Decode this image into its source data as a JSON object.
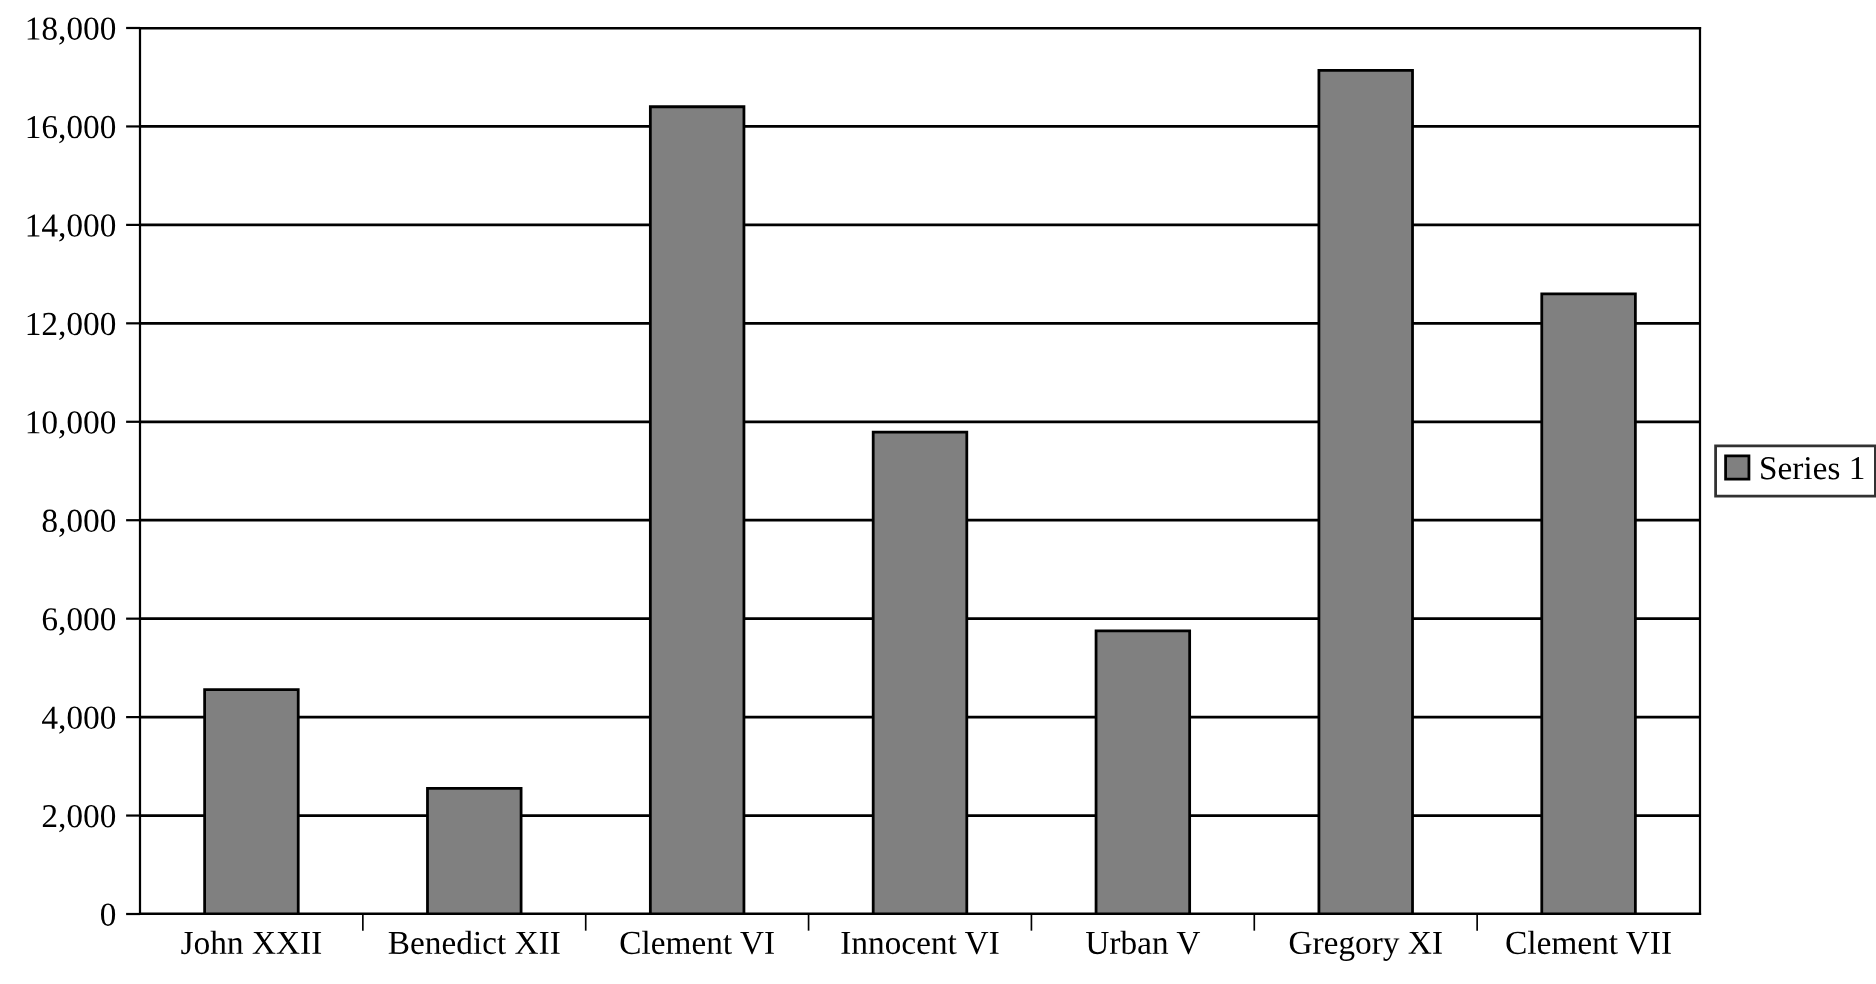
{
  "chart_data": {
    "type": "bar",
    "categories": [
      "John XXII",
      "Benedict XII",
      "Clement VI",
      "Innocent VI",
      "Urban V",
      "Gregory XI",
      "Clement VII"
    ],
    "series": [
      {
        "name": "Series 1",
        "color": "#808080",
        "values": [
          4560,
          2550,
          16400,
          9790,
          5750,
          17140,
          12600
        ]
      }
    ],
    "ylim": [
      0,
      18000
    ],
    "yticks": [
      {
        "value": 0,
        "label": "0"
      },
      {
        "value": 2000,
        "label": "2,000"
      },
      {
        "value": 4000,
        "label": "4,000"
      },
      {
        "value": 6000,
        "label": "6,000"
      },
      {
        "value": 8000,
        "label": "8,000"
      },
      {
        "value": 10000,
        "label": "10,000"
      },
      {
        "value": 12000,
        "label": "12,000"
      },
      {
        "value": 14000,
        "label": "14,000"
      },
      {
        "value": 16000,
        "label": "16,000"
      },
      {
        "value": 18000,
        "label": "18,000"
      }
    ],
    "grid": "y",
    "legend": "right"
  }
}
